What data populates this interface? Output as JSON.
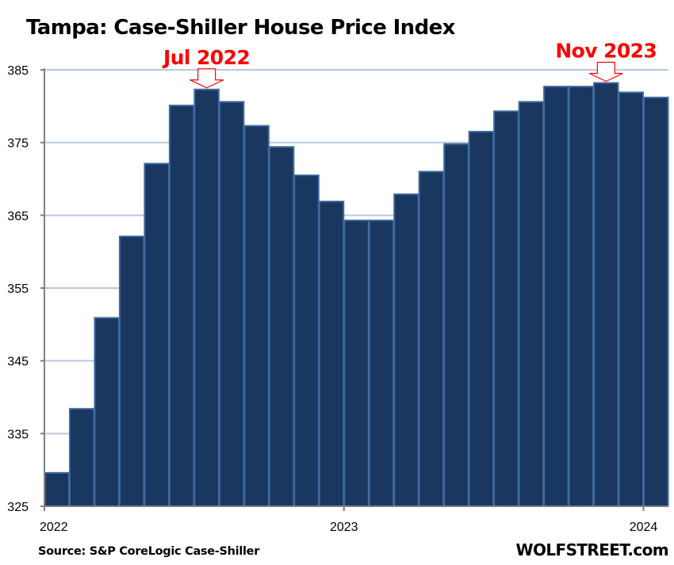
{
  "chart_data": {
    "type": "bar",
    "title": "Tampa: Case-Shiller House Price Index",
    "xlabel": "",
    "ylabel": "",
    "ylim": [
      325,
      385
    ],
    "yticks": [
      325,
      335,
      345,
      355,
      365,
      375,
      385
    ],
    "grid": true,
    "legend": "none",
    "categories": [
      "Jan 2022",
      "Feb 2022",
      "Mar 2022",
      "Apr 2022",
      "May 2022",
      "Jun 2022",
      "Jul 2022",
      "Aug 2022",
      "Sep 2022",
      "Oct 2022",
      "Nov 2022",
      "Dec 2022",
      "Jan 2023",
      "Feb 2023",
      "Mar 2023",
      "Apr 2023",
      "May 2023",
      "Jun 2023",
      "Jul 2023",
      "Aug 2023",
      "Sep 2023",
      "Oct 2023",
      "Nov 2023",
      "Dec 2023",
      "Jan 2024"
    ],
    "values": [
      329.6,
      338.4,
      350.9,
      362.1,
      372.1,
      380.1,
      382.3,
      380.6,
      377.3,
      374.4,
      370.5,
      366.9,
      364.3,
      364.3,
      367.9,
      371.0,
      374.8,
      376.5,
      379.3,
      380.6,
      382.7,
      382.7,
      383.2,
      381.9,
      381.2
    ],
    "xtick_labels": [
      {
        "label": "2022",
        "index": 0
      },
      {
        "label": "2023",
        "index": 12
      },
      {
        "label": "2024",
        "index": 24
      }
    ],
    "annotations": [
      {
        "text": "Jul 2022",
        "index": 6,
        "marker": "down-arrow"
      },
      {
        "text": "Nov 2023",
        "index": 22,
        "marker": "down-arrow"
      }
    ],
    "source": "Source: S&P CoreLogic Case-Shiller",
    "brand": "WOLFSTREET.com"
  },
  "colors": {
    "bar_fill": "#1a375f",
    "bar_edge": "#3e6aa0",
    "grid": "#b7c9df",
    "axis": "#808080",
    "annotation": "#ff0000"
  }
}
